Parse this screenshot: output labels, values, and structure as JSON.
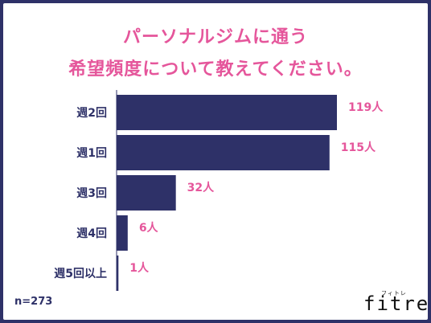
{
  "chart_data": {
    "type": "bar",
    "orientation": "horizontal",
    "title_line1": "パーソナルジムに通う",
    "title_line2": "希望頻度について教えてください。",
    "categories": [
      "週2回",
      "週1回",
      "週3回",
      "週4回",
      "週5回以上"
    ],
    "values": [
      119,
      115,
      32,
      6,
      1
    ],
    "value_labels": [
      "119人",
      "115人",
      "32人",
      "6人",
      "1人"
    ],
    "bar_color": "#2e3168",
    "label_color": "#e5569b",
    "category_color": "#2e3168",
    "xlim": [
      0,
      119
    ]
  },
  "footer": {
    "sample": "n=273"
  },
  "logo": {
    "text": "fitre",
    "kana": "フィトレ"
  }
}
